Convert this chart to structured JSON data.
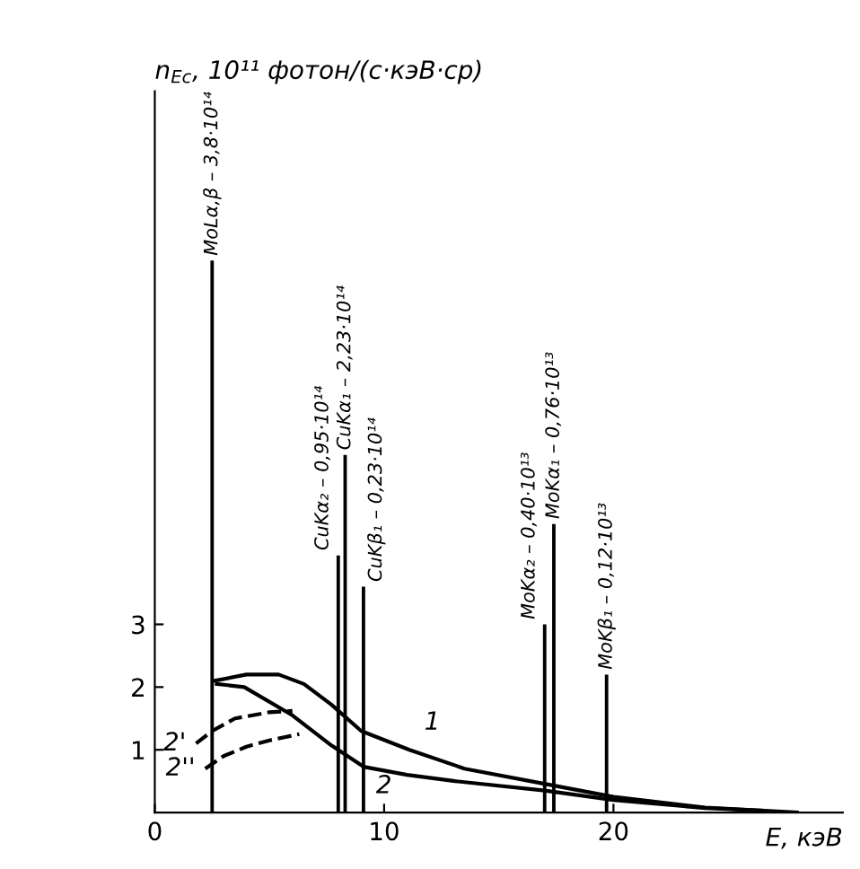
{
  "chart_data": {
    "type": "line",
    "ylabel": "n$_{Eс}$, 10¹¹ фотон/(с·кэВ·ср)",
    "xlabel": "E, кэВ",
    "xlim": [
      0,
      30
    ],
    "ylim": [
      0,
      11.5
    ],
    "xticks": [
      0,
      10,
      20
    ],
    "yticks": [
      1,
      2,
      3
    ],
    "grid": false,
    "legend": false,
    "marker": "none",
    "series": [
      {
        "name": "1",
        "color": "#000000",
        "line_style": "solid",
        "x": [
          2.6,
          4,
          5.4,
          6.5,
          7.7,
          9.0,
          11.1,
          13.5,
          17.1,
          20,
          24,
          28
        ],
        "values": [
          2.1,
          2.2,
          2.2,
          2.05,
          1.72,
          1.3,
          1.0,
          0.7,
          0.45,
          0.25,
          0.08,
          0
        ]
      },
      {
        "name": "2",
        "color": "#000000",
        "line_style": "solid",
        "x": [
          2.7,
          3.9,
          6.0,
          7.7,
          9.1,
          11,
          13.1,
          17,
          20,
          24,
          26.5
        ],
        "values": [
          2.05,
          2.0,
          1.55,
          1.07,
          0.73,
          0.6,
          0.5,
          0.35,
          0.2,
          0.07,
          0.03
        ]
      },
      {
        "name": "2'",
        "color": "#000000",
        "line_style": "dashed",
        "x": [
          1.8,
          2.5,
          3.5,
          5,
          6
        ],
        "values": [
          1.1,
          1.3,
          1.5,
          1.6,
          1.62
        ]
      },
      {
        "name": "2''",
        "color": "#000000",
        "line_style": "dashed",
        "x": [
          2.2,
          3,
          4,
          5,
          6.3
        ],
        "values": [
          0.7,
          0.9,
          1.05,
          1.15,
          1.25
        ]
      },
      {
        "type": "bar",
        "color": "#000000",
        "x": [
          2.5,
          8.0,
          8.3,
          9.1,
          17.0,
          17.4,
          19.7
        ],
        "values": [
          8.8,
          4.1,
          5.7,
          3.6,
          3.0,
          4.6,
          2.2
        ],
        "value_labels": [
          "MoLα,β – 3,8·10¹⁴",
          "CuKα₂ – 0,95·10¹⁴",
          "CuKα₁ – 2,23·10¹⁴",
          "CuKβ₁ – 0,23·10¹⁴",
          "MoKα₂ – 0,40·10¹³",
          "MoKα₁ – 0,76·10¹³",
          "MoKβ₁ – 0,12·10¹³"
        ]
      }
    ]
  }
}
